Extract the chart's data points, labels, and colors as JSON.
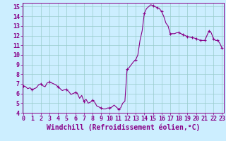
{
  "x": [
    0,
    0.25,
    0.5,
    0.75,
    1,
    1.25,
    1.5,
    1.75,
    2,
    2.25,
    2.5,
    2.75,
    3,
    3.25,
    3.5,
    3.75,
    4,
    4.25,
    4.5,
    4.75,
    5,
    5.25,
    5.5,
    5.75,
    6,
    6.25,
    6.5,
    6.75,
    7,
    7.25,
    7.5,
    7.75,
    8,
    8.25,
    8.5,
    8.75,
    9,
    9.25,
    9.5,
    9.75,
    10,
    10.25,
    10.5,
    10.75,
    11,
    11.25,
    11.5,
    11.75,
    12,
    12.25,
    12.5,
    12.75,
    13,
    13.25,
    13.5,
    13.75,
    14,
    14.25,
    14.5,
    14.75,
    15,
    15.25,
    15.5,
    15.75,
    16,
    16.25,
    16.5,
    16.75,
    17,
    17.25,
    17.5,
    17.75,
    18,
    18.25,
    18.5,
    18.75,
    19,
    19.25,
    19.5,
    19.75,
    20,
    20.25,
    20.5,
    20.75,
    21,
    21.25,
    21.5,
    21.75,
    22,
    22.25,
    22.5,
    22.75,
    23
  ],
  "y": [
    6.8,
    6.7,
    6.5,
    6.6,
    6.4,
    6.5,
    6.6,
    6.9,
    7.0,
    6.8,
    6.7,
    7.1,
    7.2,
    7.1,
    7.0,
    6.9,
    6.7,
    6.5,
    6.3,
    6.4,
    6.4,
    6.2,
    5.9,
    6.0,
    6.1,
    6.0,
    5.5,
    5.8,
    5.2,
    5.4,
    5.0,
    5.1,
    5.3,
    5.1,
    4.7,
    4.6,
    4.5,
    4.4,
    4.4,
    4.5,
    4.5,
    4.6,
    4.8,
    4.6,
    4.4,
    4.5,
    5.0,
    5.2,
    8.5,
    8.7,
    9.0,
    9.3,
    9.5,
    10.0,
    11.5,
    12.5,
    14.3,
    14.8,
    15.0,
    15.2,
    15.1,
    15.0,
    14.9,
    14.8,
    14.5,
    14.0,
    13.3,
    13.0,
    12.2,
    12.2,
    12.2,
    12.3,
    12.3,
    12.2,
    12.1,
    12.0,
    11.9,
    11.85,
    11.8,
    11.75,
    11.7,
    11.6,
    11.5,
    11.5,
    11.5,
    12.0,
    12.5,
    12.3,
    11.7,
    11.5,
    11.5,
    11.2,
    10.7
  ],
  "marker_x": [
    0,
    1,
    2,
    3,
    4,
    5,
    6,
    7,
    8,
    9,
    10,
    11,
    12,
    13,
    14,
    15,
    15.5,
    16,
    17,
    18,
    18.5,
    19,
    19.5,
    20,
    20.5,
    21,
    21.5,
    22,
    22.5,
    23
  ],
  "marker_y": [
    6.8,
    6.4,
    7.0,
    7.2,
    6.7,
    6.4,
    6.1,
    5.2,
    5.3,
    4.5,
    4.5,
    4.4,
    8.5,
    9.5,
    14.3,
    15.1,
    14.9,
    14.5,
    12.2,
    12.3,
    12.1,
    11.9,
    11.8,
    11.7,
    11.5,
    11.5,
    12.5,
    11.7,
    11.5,
    10.7
  ],
  "line_color": "#880088",
  "marker_color": "#880088",
  "xlabel": "Windchill (Refroidissement éolien,°C)",
  "xlim": [
    -0.1,
    23.2
  ],
  "ylim": [
    4,
    15.4
  ],
  "xticks": [
    0,
    1,
    2,
    3,
    4,
    5,
    6,
    7,
    8,
    9,
    10,
    11,
    12,
    13,
    14,
    15,
    16,
    17,
    18,
    19,
    20,
    21,
    22,
    23
  ],
  "yticks": [
    4,
    5,
    6,
    7,
    8,
    9,
    10,
    11,
    12,
    13,
    14,
    15
  ],
  "bg_color": "#cceeff",
  "grid_color": "#99cccc",
  "tick_label_fontsize": 6.0,
  "xlabel_fontsize": 7.0
}
